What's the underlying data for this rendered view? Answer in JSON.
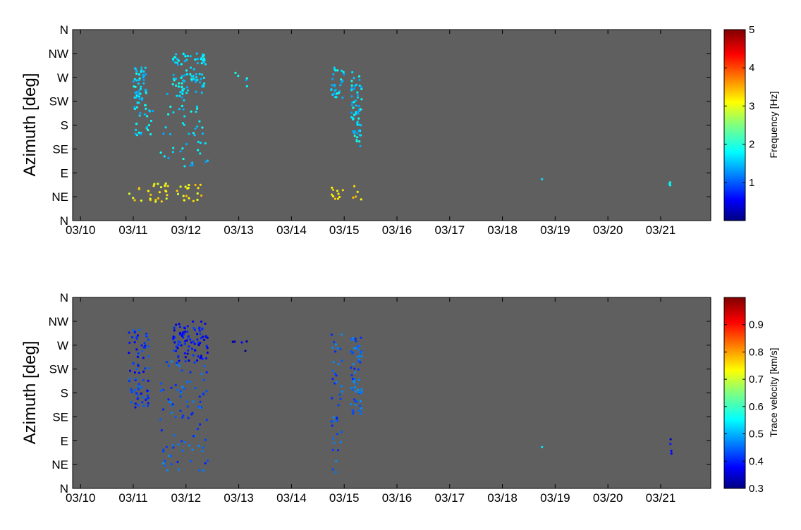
{
  "chart_data": [
    {
      "type": "scatter",
      "ylabel": "Azimuth [deg]",
      "xticks": [
        "03/10",
        "03/11",
        "03/12",
        "03/13",
        "03/14",
        "03/15",
        "03/16",
        "03/17",
        "03/18",
        "03/19",
        "03/20",
        "03/21"
      ],
      "yticks": [
        "N",
        "NE",
        "E",
        "SE",
        "S",
        "SW",
        "W",
        "NW",
        "N"
      ],
      "ylim": [
        0,
        360
      ],
      "background": "#5f5f5f",
      "colorbar": {
        "label": "Frequency [Hz]",
        "ticks": [
          "1",
          "2",
          "3",
          "4",
          "5"
        ],
        "range": [
          0,
          5
        ],
        "colormap": "jet"
      },
      "clusters": [
        {
          "day_start": "03/11",
          "day_end": "03/11 06:00",
          "az_min": 210,
          "az_max": 290,
          "value": 1.7,
          "count": 55
        },
        {
          "day_start": "03/11",
          "day_end": "03/11 09:00",
          "az_min": 150,
          "az_max": 210,
          "value": 1.7,
          "count": 20
        },
        {
          "day_start": "03/11 18:00",
          "day_end": "03/12 09:00",
          "az_min": 240,
          "az_max": 315,
          "value": 1.7,
          "count": 90
        },
        {
          "day_start": "03/11 12:00",
          "day_end": "03/12 10:00",
          "az_min": 100,
          "az_max": 240,
          "value": 1.7,
          "count": 50
        },
        {
          "day_start": "03/10 22:00",
          "day_end": "03/12 08:00",
          "az_min": 35,
          "az_max": 70,
          "value": 3.2,
          "count": 45
        },
        {
          "day_start": "03/12 20:00",
          "day_end": "03/13 04:00",
          "az_min": 250,
          "az_max": 280,
          "value": 1.7,
          "count": 5
        },
        {
          "day_start": "03/14 18:00",
          "day_end": "03/15 00:00",
          "az_min": 230,
          "az_max": 290,
          "value": 1.7,
          "count": 30
        },
        {
          "day_start": "03/15 03:00",
          "day_end": "03/15 08:00",
          "az_min": 140,
          "az_max": 285,
          "value": 1.7,
          "count": 60
        },
        {
          "day_start": "03/14 18:00",
          "day_end": "03/15 08:00",
          "az_min": 35,
          "az_max": 65,
          "value": 3.2,
          "count": 15
        },
        {
          "day_start": "03/18 18:00",
          "day_end": "03/18 18:00",
          "az_min": 78,
          "az_max": 78,
          "value": 1.8,
          "count": 1
        },
        {
          "day_start": "03/21 04:00",
          "day_end": "03/21 05:00",
          "az_min": 65,
          "az_max": 93,
          "value": 1.8,
          "count": 4
        }
      ]
    },
    {
      "type": "scatter",
      "ylabel": "Azimuth [deg]",
      "xticks": [
        "03/10",
        "03/11",
        "03/12",
        "03/13",
        "03/14",
        "03/15",
        "03/16",
        "03/17",
        "03/18",
        "03/19",
        "03/20",
        "03/21"
      ],
      "yticks": [
        "N",
        "NE",
        "E",
        "SE",
        "S",
        "SW",
        "W",
        "NW",
        "N"
      ],
      "ylim": [
        0,
        360
      ],
      "background": "#5f5f5f",
      "colorbar": {
        "label": "Trace velocity [km/s]",
        "ticks": [
          "0.3",
          "0.4",
          "0.5",
          "0.6",
          "0.7",
          "0.8",
          "0.9"
        ],
        "range": [
          0.3,
          1.0
        ],
        "colormap": "jet"
      },
      "clusters": [
        {
          "day_start": "03/10 22:00",
          "day_end": "03/11 07:00",
          "az_min": 150,
          "az_max": 300,
          "value": 0.42,
          "count": 80
        },
        {
          "day_start": "03/11 18:00",
          "day_end": "03/12 10:00",
          "az_min": 240,
          "az_max": 315,
          "value": 0.4,
          "count": 90
        },
        {
          "day_start": "03/11 12:00",
          "day_end": "03/12 10:00",
          "az_min": 30,
          "az_max": 240,
          "value": 0.45,
          "count": 90
        },
        {
          "day_start": "03/12 20:00",
          "day_end": "03/13 04:00",
          "az_min": 250,
          "az_max": 280,
          "value": 0.35,
          "count": 5
        },
        {
          "day_start": "03/14 18:00",
          "day_end": "03/15 00:00",
          "az_min": 30,
          "az_max": 290,
          "value": 0.45,
          "count": 40
        },
        {
          "day_start": "03/15 03:00",
          "day_end": "03/15 08:00",
          "az_min": 140,
          "az_max": 285,
          "value": 0.45,
          "count": 60
        },
        {
          "day_start": "03/18 18:00",
          "day_end": "03/18 18:00",
          "az_min": 78,
          "az_max": 78,
          "value": 0.55,
          "count": 1
        },
        {
          "day_start": "03/21 04:00",
          "day_end": "03/21 05:00",
          "az_min": 65,
          "az_max": 93,
          "value": 0.38,
          "count": 4
        }
      ]
    }
  ]
}
